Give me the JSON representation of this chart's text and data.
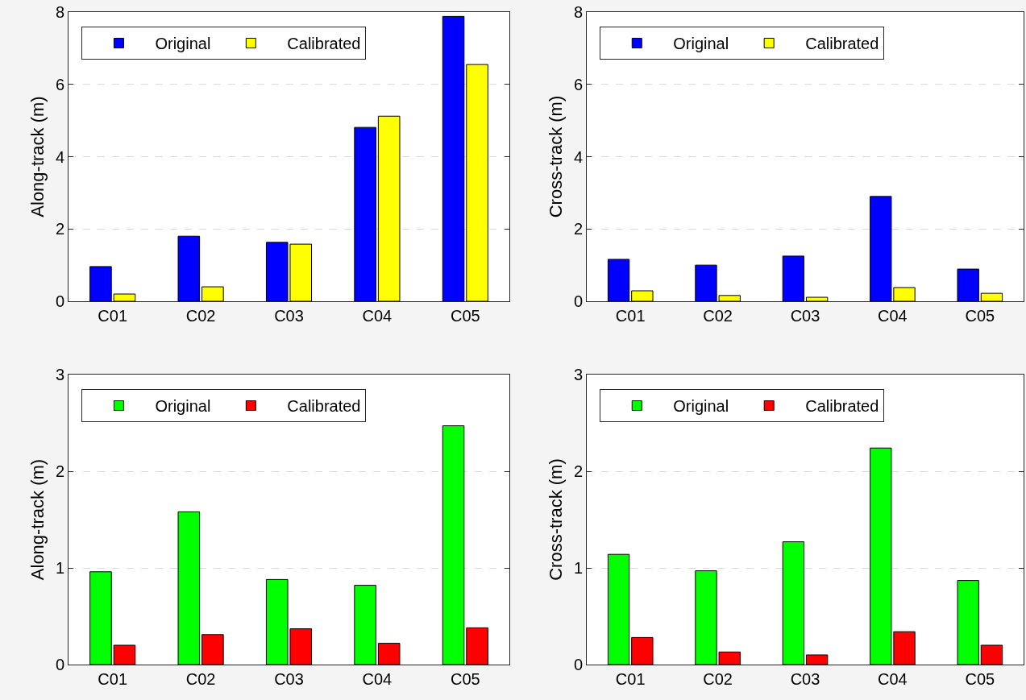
{
  "chart_data": [
    {
      "type": "bar",
      "ylabel": "Along-track (m)",
      "categories": [
        "C01",
        "C02",
        "C03",
        "C04",
        "C05"
      ],
      "series": [
        {
          "name": "Original",
          "color": "#0000ff",
          "values": [
            0.96,
            1.8,
            1.63,
            4.81,
            7.88
          ]
        },
        {
          "name": "Calibrated",
          "color": "#ffff00",
          "values": [
            0.2,
            0.4,
            1.58,
            5.12,
            6.55
          ]
        }
      ],
      "ylim": [
        0,
        8
      ],
      "yticks": [
        0,
        2,
        4,
        6,
        8
      ],
      "grid": "y",
      "legend": "top left"
    },
    {
      "type": "bar",
      "ylabel": "Cross-track (m)",
      "categories": [
        "C01",
        "C02",
        "C03",
        "C04",
        "C05"
      ],
      "series": [
        {
          "name": "Original",
          "color": "#0000ff",
          "values": [
            1.16,
            1.0,
            1.25,
            2.9,
            0.89
          ]
        },
        {
          "name": "Calibrated",
          "color": "#ffff00",
          "values": [
            0.29,
            0.16,
            0.11,
            0.38,
            0.22
          ]
        }
      ],
      "ylim": [
        0,
        8
      ],
      "yticks": [
        0,
        2,
        4,
        6,
        8
      ],
      "grid": "y",
      "legend": "top left"
    },
    {
      "type": "bar",
      "ylabel": "Along-track (m)",
      "categories": [
        "C01",
        "C02",
        "C03",
        "C04",
        "C05"
      ],
      "series": [
        {
          "name": "Original",
          "color": "#00ff00",
          "values": [
            0.96,
            1.58,
            0.88,
            0.82,
            2.47
          ]
        },
        {
          "name": "Calibrated",
          "color": "#ff0000",
          "values": [
            0.2,
            0.31,
            0.37,
            0.22,
            0.38
          ]
        }
      ],
      "ylim": [
        0,
        3
      ],
      "yticks": [
        0,
        1,
        2,
        3
      ],
      "grid": "y",
      "legend": "top left"
    },
    {
      "type": "bar",
      "ylabel": "Cross-track (m)",
      "categories": [
        "C01",
        "C02",
        "C03",
        "C04",
        "C05"
      ],
      "series": [
        {
          "name": "Original",
          "color": "#00ff00",
          "values": [
            1.14,
            0.97,
            1.27,
            2.24,
            0.87
          ]
        },
        {
          "name": "Calibrated",
          "color": "#ff0000",
          "values": [
            0.28,
            0.13,
            0.1,
            0.34,
            0.2
          ]
        }
      ],
      "ylim": [
        0,
        3
      ],
      "yticks": [
        0,
        1,
        2,
        3
      ],
      "grid": "y",
      "legend": "top left"
    }
  ]
}
